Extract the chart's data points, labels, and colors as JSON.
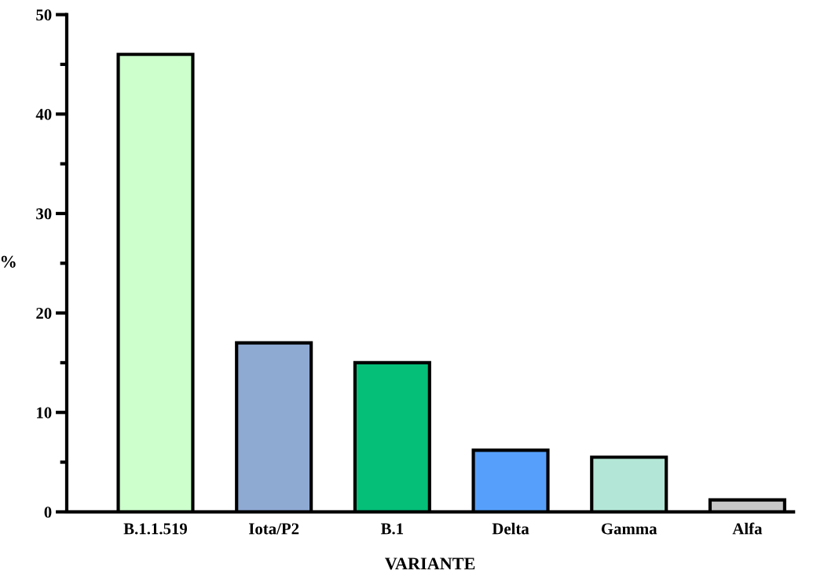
{
  "chart_data": {
    "type": "bar",
    "xlabel": "VARIANTE",
    "ylabel": "%",
    "categories": [
      "B.1.1.519",
      "Iota/P2",
      "B.1",
      "Delta",
      "Gamma",
      "Alfa"
    ],
    "values": [
      46.0,
      17.0,
      15.0,
      6.2,
      5.5,
      1.2
    ],
    "colors": [
      "#ccffcc",
      "#8eaad3",
      "#05be78",
      "#56a0fb",
      "#b3e6d6",
      "#c8c8c8"
    ],
    "ylim": [
      0,
      50
    ],
    "yticks": [
      0,
      {
        "value": 5,
        "label": null
      },
      10,
      {
        "value": 15,
        "label": null
      },
      20,
      {
        "value": 25,
        "label": null
      },
      30,
      {
        "value": 35,
        "label": null
      },
      40,
      {
        "value": 45,
        "label": null
      },
      50
    ],
    "grid": false
  }
}
